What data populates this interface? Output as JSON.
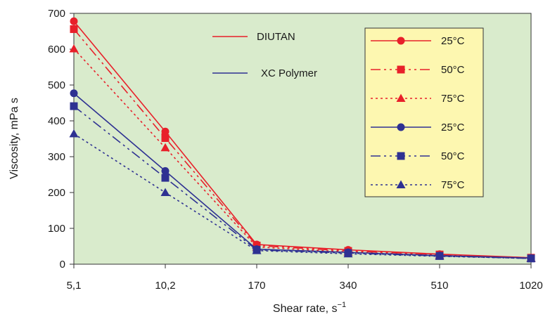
{
  "chart_data": {
    "type": "line",
    "title": "",
    "xlabel": "Shear rate, s",
    "xlabel_superscript": "−1",
    "ylabel": "Viscosity, mPa s",
    "categories": [
      "5,1",
      "10,2",
      "170",
      "340",
      "510",
      "1020"
    ],
    "ylim": [
      0,
      700
    ],
    "yticks": [
      "0",
      "100",
      "200",
      "300",
      "400",
      "500",
      "600",
      "700"
    ],
    "grid": false,
    "plot_background": "#d9ebcc",
    "legend_background": "#fdf7b0",
    "fluid_legend": [
      {
        "name": "DIUTAN",
        "color": "#e8202a"
      },
      {
        "name": "XC Polymer",
        "color": "#2e3192"
      }
    ],
    "series": [
      {
        "name": "25°C",
        "fluid": "DIUTAN",
        "color": "#e8202a",
        "marker": "circle",
        "dash": "solid",
        "values": [
          678,
          370,
          55,
          40,
          28,
          18
        ]
      },
      {
        "name": "50°C",
        "fluid": "DIUTAN",
        "color": "#e8202a",
        "marker": "square",
        "dash": "dashdot",
        "values": [
          656,
          352,
          52,
          37,
          27,
          18
        ]
      },
      {
        "name": "75°C",
        "fluid": "DIUTAN",
        "color": "#e8202a",
        "marker": "triangle",
        "dash": "dotted",
        "values": [
          601,
          325,
          48,
          34,
          25,
          17
        ]
      },
      {
        "name": "25°C",
        "fluid": "XC Polymer",
        "color": "#2e3192",
        "marker": "circle",
        "dash": "solid",
        "values": [
          477,
          260,
          42,
          33,
          24,
          17
        ]
      },
      {
        "name": "50°C",
        "fluid": "XC Polymer",
        "color": "#2e3192",
        "marker": "square",
        "dash": "dashdot",
        "values": [
          441,
          241,
          40,
          31,
          23,
          16
        ]
      },
      {
        "name": "75°C",
        "fluid": "XC Polymer",
        "color": "#2e3192",
        "marker": "triangle",
        "dash": "dotted",
        "values": [
          364,
          200,
          38,
          29,
          22,
          16
        ]
      }
    ]
  }
}
